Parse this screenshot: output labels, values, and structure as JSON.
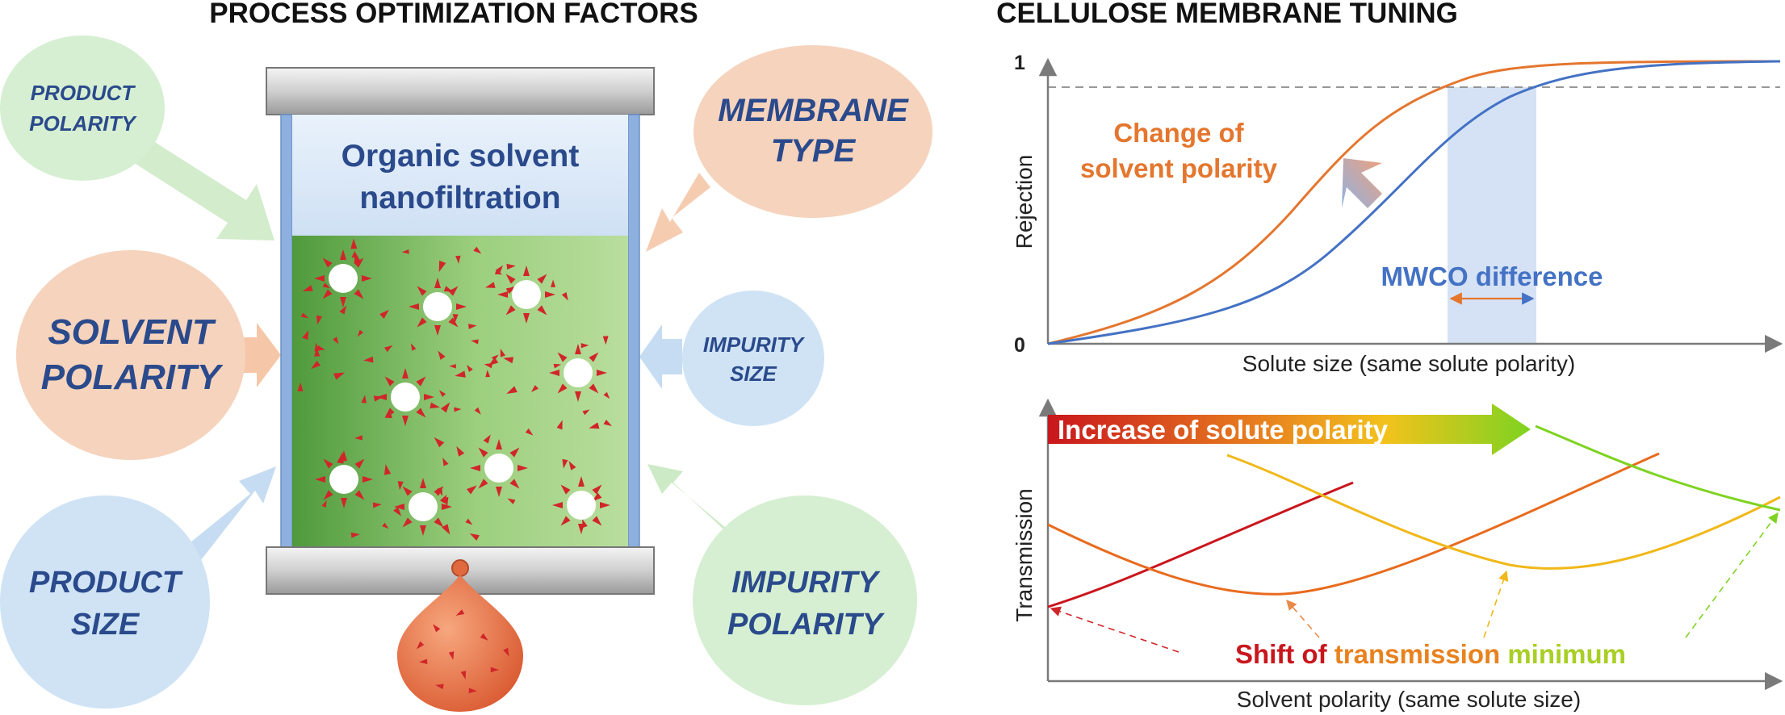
{
  "left_panel": {
    "title": "PROCESS OPTIMIZATION FACTORS",
    "vessel_title": [
      "Organic solvent",
      "nanofiltration"
    ],
    "factors": {
      "product_polarity": [
        "PRODUCT",
        "POLARITY"
      ],
      "membrane_type": [
        "MEMBRANE",
        "TYPE"
      ],
      "solvent_polarity": [
        "SOLVENT",
        "POLARITY"
      ],
      "impurity_size": [
        "IMPURITY",
        "SIZE"
      ],
      "product_size": [
        "PRODUCT",
        "SIZE"
      ],
      "impurity_polarity": [
        "IMPURITY",
        "POLARITY"
      ]
    },
    "colors": {
      "green_bubble": "#d6efd2",
      "orange_bubble": "#f6d3bd",
      "blue_bubble": "#cfe3f5",
      "solution_dark": "#4e9a3c",
      "solution_light": "#b8dd9c",
      "solute": "#d0262a",
      "drop": "#e06a3e"
    }
  },
  "right_panel": {
    "title": "CELLULOSE MEMBRANE TUNING",
    "rejection_chart": {
      "ylabel": "Rejection",
      "xlabel": "Solute size (same solute polarity)",
      "y_tick_top": "1",
      "y_tick_bottom": "0",
      "annotation": [
        "Change of",
        "solvent polarity"
      ],
      "mwco_label": "MWCO",
      "difference_label": "difference",
      "colors": {
        "orange": "#e4762e",
        "blue": "#4472c4",
        "band": "#d5e2f5"
      }
    },
    "transmission_chart": {
      "ylabel": "Transmission",
      "xlabel": "Solvent polarity (same solute size)",
      "banner": "Increase of solute polarity",
      "shift_words": [
        "Shift of",
        "transmission",
        "minimum"
      ],
      "colors": {
        "red": "#c9161d",
        "orange": "#e86b1e",
        "yellow": "#f0b81a",
        "green": "#7ed321"
      }
    }
  }
}
